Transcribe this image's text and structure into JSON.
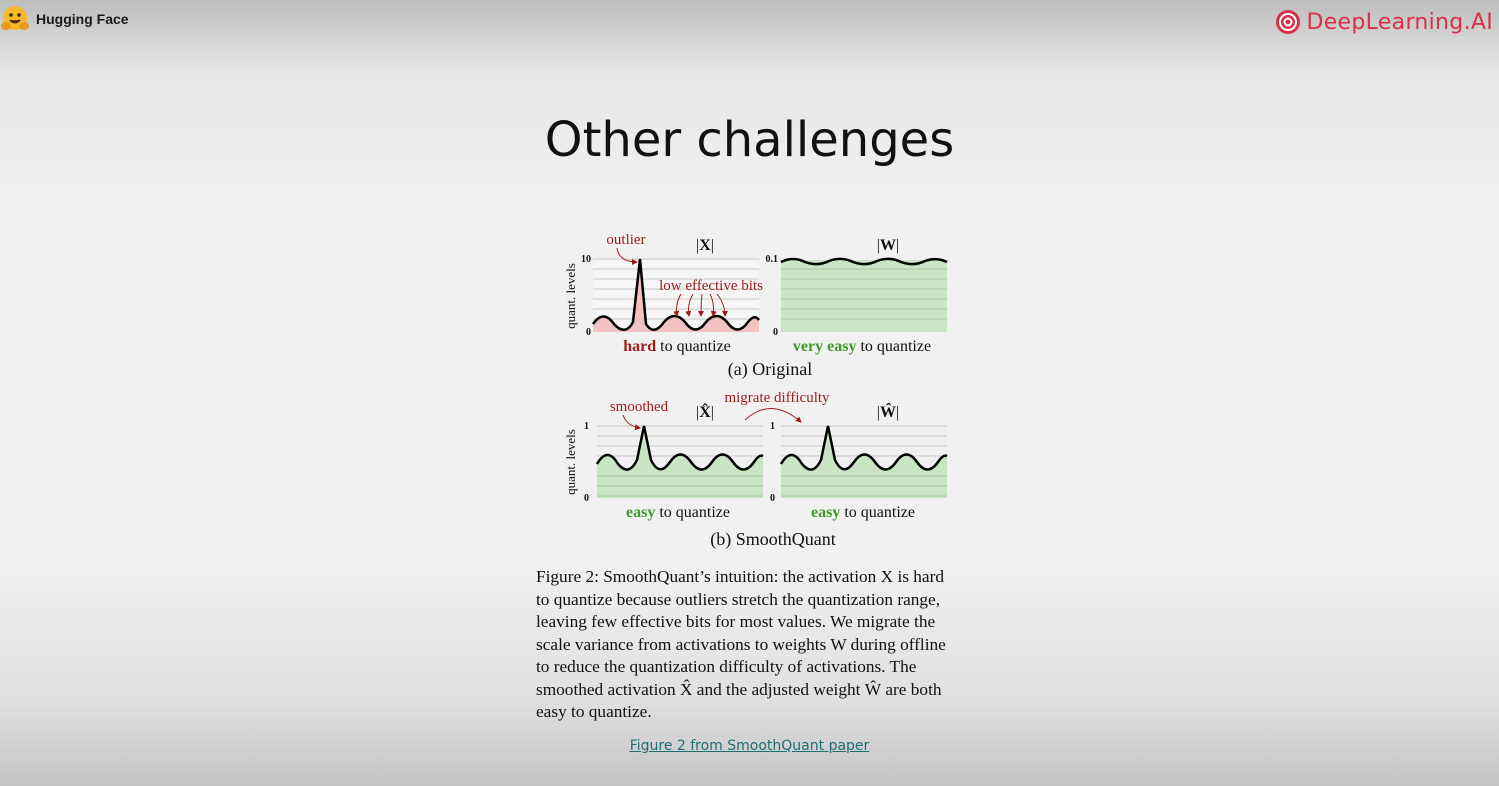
{
  "header": {
    "left_brand": "Hugging Face",
    "right_brand": "DeepLearning.AI"
  },
  "slide": {
    "title": "Other challenges",
    "link_text": "Figure 2 from SmoothQuant paper"
  },
  "figure": {
    "y_axis_label": "quant. levels",
    "original": {
      "caption": "(a) Original",
      "activation": {
        "title_prefix": "|",
        "title_symbol": "X",
        "title_suffix": "|",
        "ymax": "10",
        "ymin": "0",
        "annotation_outlier": "outlier",
        "annotation_bits": "low effective bits",
        "verdict_emph": "hard",
        "verdict_rest": " to quantize"
      },
      "weight": {
        "title_prefix": "|",
        "title_symbol": "W",
        "title_suffix": "|",
        "ymax": "0.1",
        "ymin": "0",
        "verdict_emph": "very easy",
        "verdict_rest": " to quantize"
      }
    },
    "smoothquant": {
      "caption": "(b) SmoothQuant",
      "migrate_label": "migrate difficulty",
      "activation": {
        "title_prefix": "|",
        "title_symbol": "X̂",
        "title_suffix": "|",
        "ymax": "1",
        "ymin": "0",
        "annotation_smoothed": "smoothed",
        "verdict_emph": "easy",
        "verdict_rest": " to quantize"
      },
      "weight": {
        "title_prefix": "|",
        "title_symbol": "Ŵ",
        "title_suffix": "|",
        "ymax": "1",
        "ymin": "0",
        "verdict_emph": "easy",
        "verdict_rest": " to quantize"
      }
    },
    "colors": {
      "red": "#a01c1c",
      "green": "#3d9a2a",
      "red_fill": "#f2b8b8",
      "green_fill": "#c5e3c0"
    }
  },
  "caption": {
    "lines": [
      "Figure 2: SmoothQuant’s intuition: the activation X is hard",
      "to quantize because outliers stretch the quantization range,",
      "leaving few effective bits for most values. We migrate the",
      "scale variance from activations to weights W during offline",
      "to reduce the quantization difficulty of activations. The",
      "smoothed activation X̂ and the adjusted weight Ŵ are both",
      "easy to quantize."
    ]
  }
}
